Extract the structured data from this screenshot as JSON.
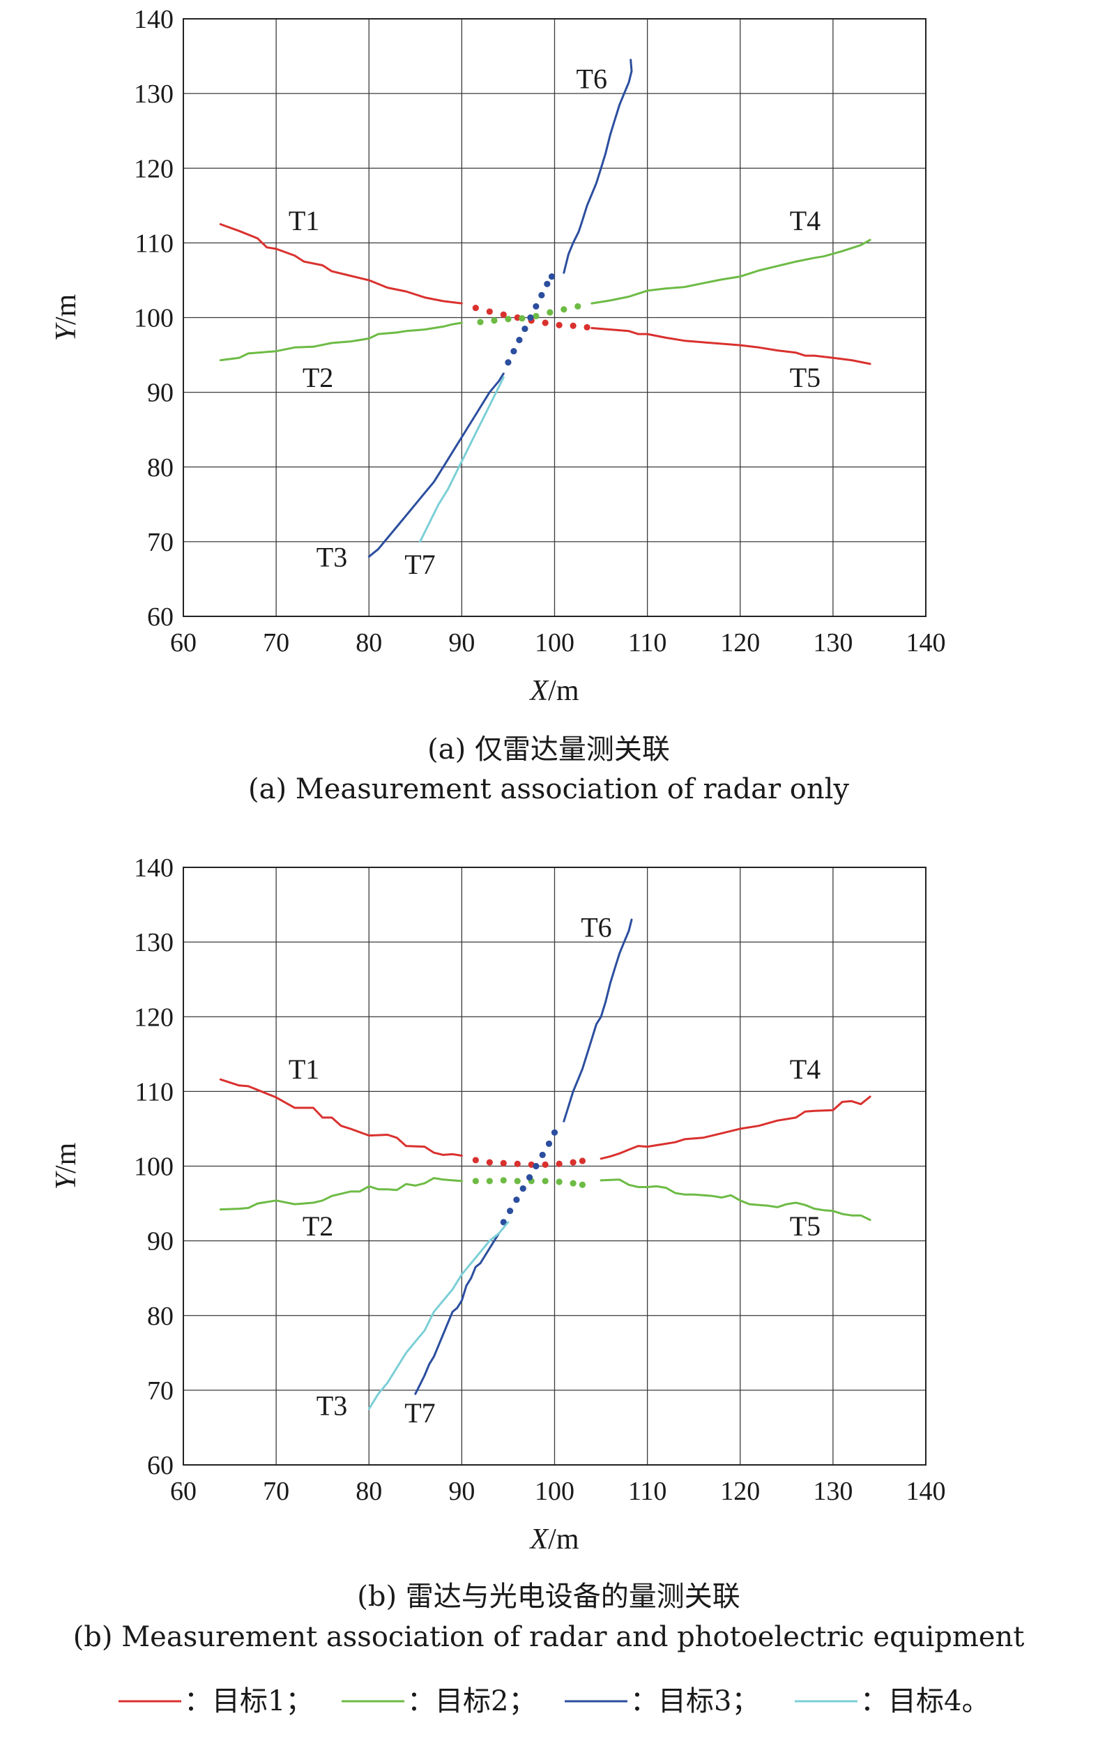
{
  "colors": {
    "target1": "#d9312e",
    "target2": "#6dbb45",
    "target3": "#2b4e9e",
    "target4": "#7ccfd6",
    "grid": "#3a3a3a",
    "text": "#1a1a1a"
  },
  "legend": [
    {
      "label": "：目标1；",
      "color": "#d9312e"
    },
    {
      "label": "：目标2；",
      "color": "#6dbb45"
    },
    {
      "label": "：目标3；",
      "color": "#2b4e9e"
    },
    {
      "label": "：目标4。",
      "color": "#7ccfd6"
    }
  ],
  "chart_data": [
    {
      "type": "line",
      "caption_cn": "(a) 仅雷达量测关联",
      "caption_en": "(a) Measurement association of radar only",
      "xlabel": {
        "var": "X",
        "unit": "/m"
      },
      "ylabel": {
        "var": "Y",
        "unit": "/m"
      },
      "xlim": [
        60,
        140
      ],
      "ylim": [
        60,
        140
      ],
      "xticks": [
        "60",
        "70",
        "80",
        "90",
        "100",
        "110",
        "120",
        "130",
        "140"
      ],
      "yticks": [
        "60",
        "70",
        "80",
        "90",
        "100",
        "110",
        "120",
        "130",
        "140"
      ],
      "grid": true,
      "track_labels": [
        {
          "text": "T1",
          "x": 73,
          "y": 113
        },
        {
          "text": "T2",
          "x": 74.5,
          "y": 92
        },
        {
          "text": "T3",
          "x": 76,
          "y": 68
        },
        {
          "text": "T4",
          "x": 127,
          "y": 113
        },
        {
          "text": "T5",
          "x": 127,
          "y": 92
        },
        {
          "text": "T6",
          "x": 104,
          "y": 132
        },
        {
          "text": "T7",
          "x": 85.5,
          "y": 67
        }
      ],
      "series": [
        {
          "color": "target1",
          "style": "solid",
          "x": [
            64,
            66,
            68,
            69,
            70,
            72,
            73,
            75,
            76,
            78,
            80,
            82,
            84,
            86,
            88,
            90
          ],
          "y": [
            112.5,
            111.6,
            110.6,
            109.4,
            109.2,
            108.3,
            107.5,
            107,
            106.2,
            105.6,
            105,
            104,
            103.5,
            102.7,
            102.2,
            101.9
          ]
        },
        {
          "color": "target1",
          "style": "dotted",
          "x": [
            91.5,
            93,
            94.5,
            96,
            97.5,
            99,
            100.5,
            102,
            103.5
          ],
          "y": [
            101.3,
            100.8,
            100.4,
            100,
            99.6,
            99.3,
            99,
            98.9,
            98.7
          ]
        },
        {
          "color": "target1",
          "style": "solid",
          "x": [
            104,
            106,
            108,
            109,
            110,
            112,
            114,
            116,
            118,
            120,
            122,
            124,
            126,
            127,
            128,
            130,
            132,
            134
          ],
          "y": [
            98.6,
            98.4,
            98.2,
            97.8,
            97.8,
            97.3,
            96.9,
            96.7,
            96.5,
            96.3,
            96,
            95.6,
            95.3,
            94.9,
            94.9,
            94.6,
            94.3,
            93.8
          ]
        },
        {
          "color": "target2",
          "style": "solid",
          "x": [
            64,
            66,
            67,
            70,
            72,
            74,
            76,
            78,
            80,
            81,
            83,
            84,
            86,
            88,
            89,
            90
          ],
          "y": [
            94.3,
            94.6,
            95.2,
            95.5,
            96,
            96.1,
            96.6,
            96.8,
            97.2,
            97.8,
            98,
            98.2,
            98.4,
            98.8,
            99.1,
            99.3
          ]
        },
        {
          "color": "target2",
          "style": "dotted",
          "x": [
            92,
            93.5,
            95,
            96.5,
            98,
            99.5,
            101,
            102.5
          ],
          "y": [
            99.4,
            99.6,
            99.8,
            99.9,
            100.2,
            100.7,
            101.1,
            101.5
          ]
        },
        {
          "color": "target2",
          "style": "solid",
          "x": [
            104,
            106,
            108,
            109,
            110,
            112,
            114,
            116,
            118,
            120,
            121,
            122,
            124,
            126,
            128,
            129,
            131,
            133,
            134
          ],
          "y": [
            101.9,
            102.3,
            102.8,
            103.2,
            103.6,
            103.9,
            104.1,
            104.6,
            105.1,
            105.5,
            105.9,
            106.3,
            106.9,
            107.5,
            108,
            108.2,
            108.9,
            109.7,
            110.4
          ]
        },
        {
          "color": "target3",
          "style": "solid",
          "x": [
            80,
            81,
            82,
            83,
            84,
            85,
            86,
            87,
            88,
            89,
            90,
            91,
            92,
            93,
            94,
            94.5
          ],
          "y": [
            68,
            69,
            70.5,
            72,
            73.5,
            75,
            76.5,
            78,
            80,
            82,
            84,
            86,
            88,
            90,
            91.5,
            92.5
          ]
        },
        {
          "color": "target3",
          "style": "dotted",
          "x": [
            95,
            95.6,
            96.2,
            96.8,
            97.4,
            98,
            98.6,
            99.2,
            99.7
          ],
          "y": [
            94,
            95.5,
            97,
            98.5,
            100,
            101.5,
            103,
            104.5,
            105.5
          ]
        },
        {
          "color": "target3",
          "style": "solid",
          "x": [
            101,
            101.5,
            102,
            102.6,
            103,
            103.5,
            104,
            104.5,
            105,
            105.5,
            106,
            106.5,
            107,
            107.5,
            108,
            108.3,
            108.2
          ],
          "y": [
            106,
            108.5,
            110,
            111.5,
            113,
            115,
            116.5,
            118,
            120,
            122,
            124.5,
            126.5,
            128.5,
            130,
            131.5,
            133,
            134.5
          ]
        },
        {
          "color": "target4",
          "style": "solid",
          "x": [
            85.5,
            86.5,
            87.5,
            88.5,
            89.5,
            90.5,
            91.5,
            92.5,
            93.5,
            94.5
          ],
          "y": [
            70,
            72.5,
            75,
            77,
            79.5,
            82,
            84.5,
            87,
            89.5,
            92
          ]
        }
      ]
    },
    {
      "type": "line",
      "caption_cn": "(b) 雷达与光电设备的量测关联",
      "caption_en": "(b) Measurement association of radar and photoelectric equipment",
      "xlabel": {
        "var": "X",
        "unit": "/m"
      },
      "ylabel": {
        "var": "Y",
        "unit": "/m"
      },
      "xlim": [
        60,
        140
      ],
      "ylim": [
        60,
        140
      ],
      "xticks": [
        "60",
        "70",
        "80",
        "90",
        "100",
        "110",
        "120",
        "130",
        "140"
      ],
      "yticks": [
        "60",
        "70",
        "80",
        "90",
        "100",
        "110",
        "120",
        "130",
        "140"
      ],
      "grid": true,
      "track_labels": [
        {
          "text": "T1",
          "x": 73,
          "y": 113
        },
        {
          "text": "T2",
          "x": 74.5,
          "y": 92
        },
        {
          "text": "T3",
          "x": 76,
          "y": 68
        },
        {
          "text": "T4",
          "x": 127,
          "y": 113
        },
        {
          "text": "T5",
          "x": 127,
          "y": 92
        },
        {
          "text": "T6",
          "x": 104.5,
          "y": 132
        },
        {
          "text": "T7",
          "x": 85.5,
          "y": 67
        }
      ],
      "series": [
        {
          "color": "target1",
          "style": "solid",
          "x": [
            64,
            66,
            67,
            68,
            70,
            72,
            74,
            75,
            76,
            77,
            78,
            80,
            82,
            83,
            84,
            86,
            87,
            88,
            89,
            90
          ],
          "y": [
            111.6,
            110.8,
            110.7,
            110.2,
            109.2,
            107.8,
            107.8,
            106.5,
            106.5,
            105.4,
            105,
            104.1,
            104.2,
            103.8,
            102.7,
            102.6,
            101.8,
            101.5,
            101.6,
            101.4
          ]
        },
        {
          "color": "target1",
          "style": "dotted",
          "x": [
            91.5,
            93,
            94.5,
            96,
            97.5,
            99,
            100.5,
            102,
            103
          ],
          "y": [
            100.8,
            100.5,
            100.4,
            100.3,
            100.2,
            100.2,
            100.3,
            100.5,
            100.7
          ]
        },
        {
          "color": "target1",
          "style": "solid",
          "x": [
            105,
            106,
            107,
            108,
            109,
            110,
            112,
            113,
            114,
            116,
            118,
            120,
            122,
            124,
            126,
            127,
            128,
            130,
            131,
            132,
            133,
            134
          ],
          "y": [
            101,
            101.3,
            101.7,
            102.2,
            102.7,
            102.6,
            103,
            103.2,
            103.6,
            103.8,
            104.4,
            105,
            105.4,
            106.1,
            106.5,
            107.3,
            107.4,
            107.5,
            108.6,
            108.7,
            108.3,
            109.3
          ]
        },
        {
          "color": "target2",
          "style": "solid",
          "x": [
            64,
            66,
            67,
            68,
            70,
            72,
            74,
            75,
            76,
            78,
            79,
            80,
            81,
            82,
            83,
            84,
            85,
            86,
            87,
            88,
            89,
            90
          ],
          "y": [
            94.2,
            94.3,
            94.4,
            95,
            95.4,
            94.9,
            95.1,
            95.4,
            96,
            96.6,
            96.6,
            97.3,
            96.9,
            96.9,
            96.8,
            97.6,
            97.4,
            97.7,
            98.4,
            98.2,
            98.1,
            98
          ]
        },
        {
          "color": "target2",
          "style": "dotted",
          "x": [
            91.5,
            93,
            94.5,
            96,
            97.5,
            99,
            100.5,
            102,
            103
          ],
          "y": [
            98,
            98,
            98.1,
            98,
            98,
            98,
            97.9,
            97.7,
            97.5
          ]
        },
        {
          "color": "target2",
          "style": "solid",
          "x": [
            105,
            107,
            108,
            109,
            110,
            111,
            112,
            113,
            114,
            115,
            116,
            117,
            118,
            119,
            120,
            121,
            122,
            123,
            124,
            125,
            126,
            127,
            128,
            129,
            130,
            131,
            132,
            133,
            134
          ],
          "y": [
            98.1,
            98.2,
            97.5,
            97.2,
            97.2,
            97.3,
            97.1,
            96.4,
            96.2,
            96.2,
            96.1,
            96,
            95.8,
            96.1,
            95.4,
            94.9,
            94.8,
            94.7,
            94.5,
            94.9,
            95.1,
            94.8,
            94.3,
            94.1,
            94,
            93.6,
            93.4,
            93.4,
            92.8
          ]
        },
        {
          "color": "target3",
          "style": "solid",
          "x": [
            85,
            85.6,
            86,
            86.5,
            87,
            87.5,
            88,
            88.5,
            89,
            89.5,
            90,
            90.5,
            91,
            91.5,
            92,
            92.5,
            93,
            93.5,
            94
          ],
          "y": [
            69.5,
            71,
            72,
            73.5,
            74.5,
            76,
            77.5,
            79,
            80.5,
            81,
            82,
            84,
            85,
            86.5,
            87,
            88,
            89,
            90,
            91
          ]
        },
        {
          "color": "target3",
          "style": "dotted",
          "x": [
            94.5,
            95.2,
            95.9,
            96.6,
            97.3,
            98,
            98.7,
            99.4,
            100
          ],
          "y": [
            92.5,
            94,
            95.5,
            97,
            98.5,
            100,
            101.5,
            103,
            104.5
          ]
        },
        {
          "color": "target3",
          "style": "solid",
          "x": [
            101,
            101.5,
            102,
            102.5,
            103,
            103.5,
            104,
            104.5,
            105,
            105.5,
            106,
            106.5,
            107,
            107.5,
            108,
            108.3
          ],
          "y": [
            106,
            108,
            110,
            111.5,
            113,
            115,
            117,
            119,
            120,
            122,
            124.5,
            126.5,
            128.5,
            130,
            131.5,
            133
          ]
        },
        {
          "color": "target4",
          "style": "solid",
          "x": [
            80,
            81,
            82,
            83,
            84,
            85,
            86,
            87,
            88,
            89,
            90,
            91,
            92,
            93,
            94,
            95
          ],
          "y": [
            67.5,
            69.5,
            71,
            73,
            75,
            76.5,
            78,
            80.5,
            82,
            83.5,
            85.5,
            87,
            88.5,
            90,
            91,
            92.5
          ]
        }
      ]
    }
  ]
}
